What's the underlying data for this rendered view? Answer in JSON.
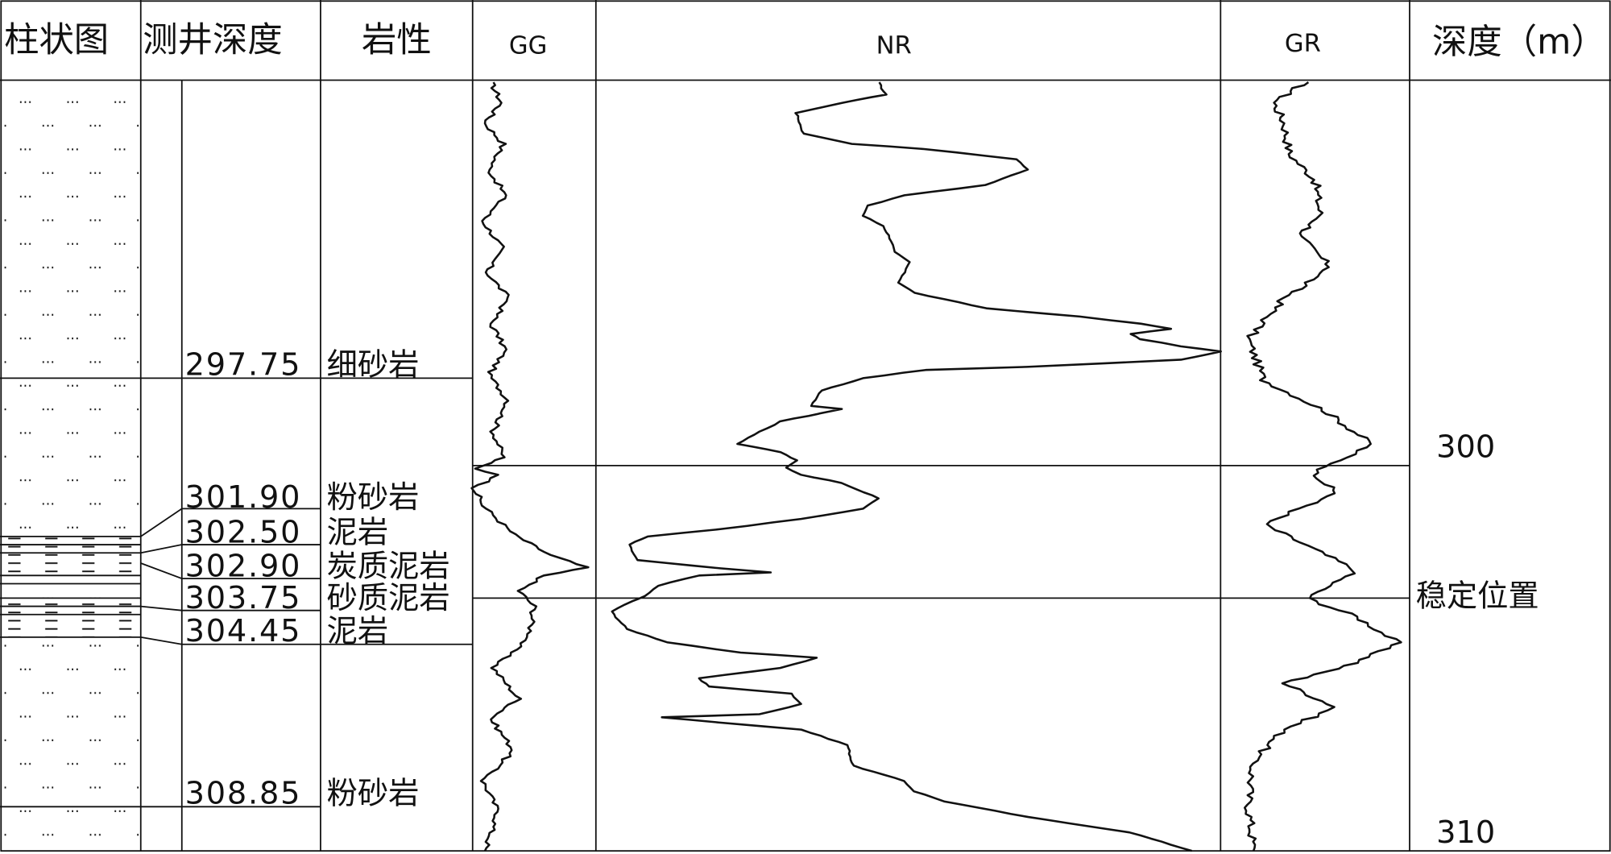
{
  "headers": [
    "柱状图",
    "测井深度",
    "岩性",
    "GG",
    "NR",
    "GR",
    "深度（m）"
  ],
  "layers": [
    {
      "depth": "297.75",
      "lithology": "细砂岩"
    },
    {
      "depth": "301.90",
      "lithology": "粉砂岩"
    },
    {
      "depth": "302.50",
      "lithology": "泥岩"
    },
    {
      "depth": "302.90",
      "lithology": "炭质泥岩"
    },
    {
      "depth": "303.75",
      "lithology": "砂质泥岩"
    },
    {
      "depth": "304.45",
      "lithology": "泥岩"
    },
    {
      "depth": "308.85",
      "lithology": "粉砂岩"
    }
  ],
  "depth_scale": [
    "300",
    "稳定位置",
    "310"
  ]
}
